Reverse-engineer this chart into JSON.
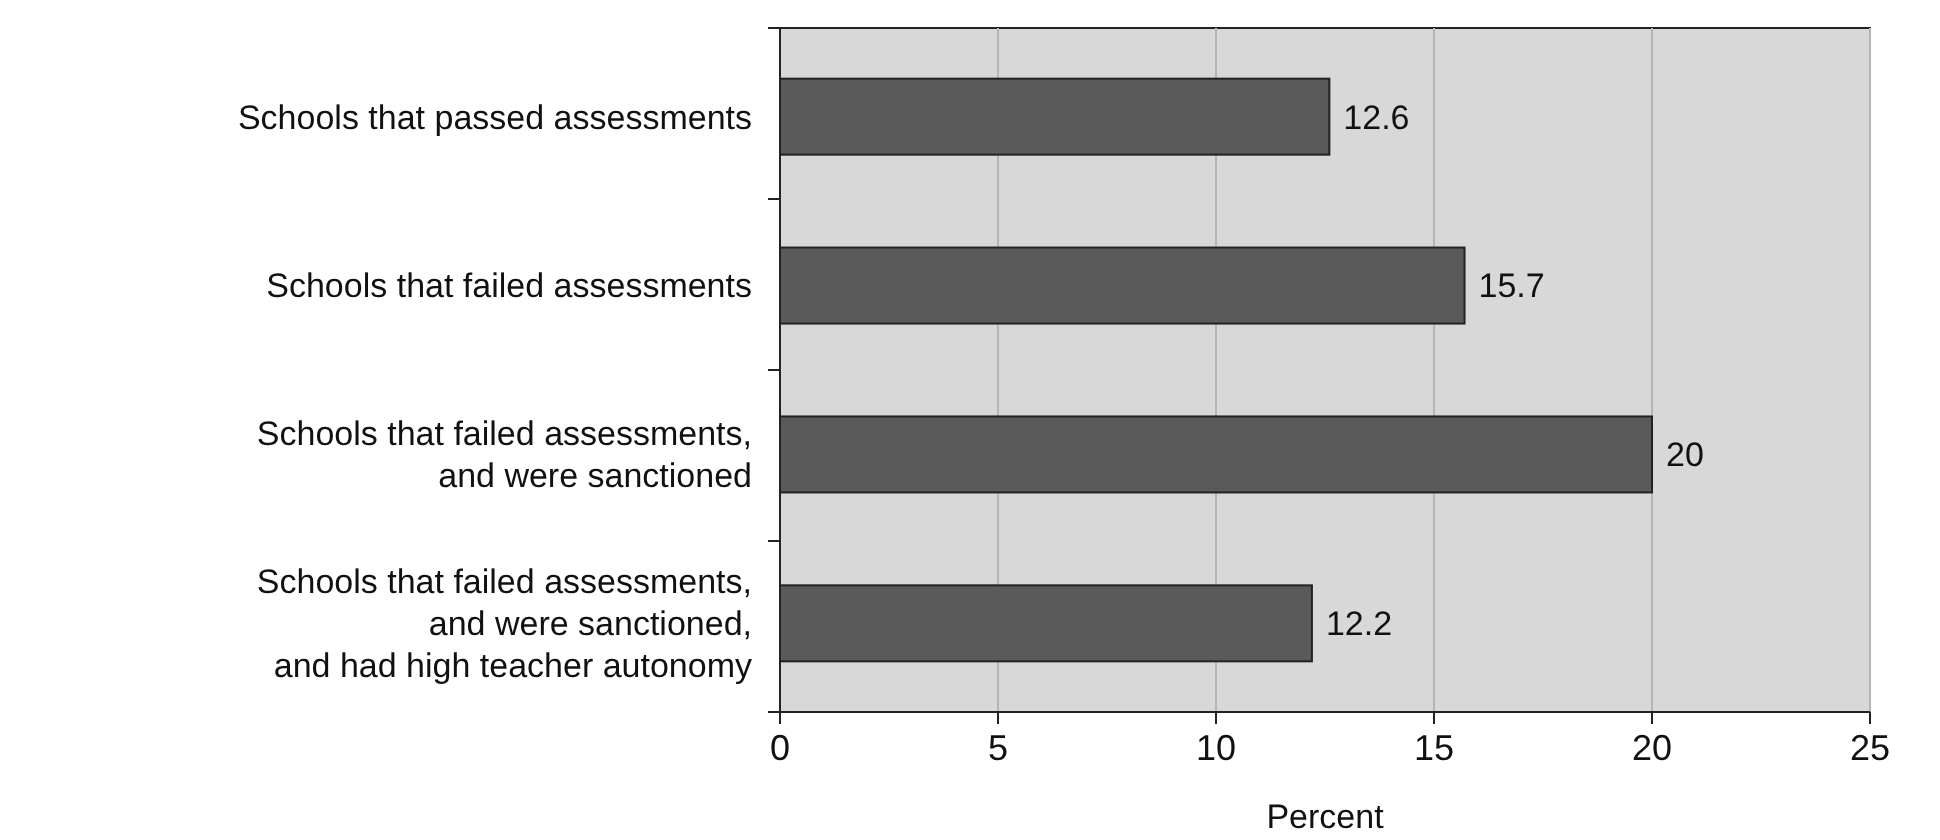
{
  "chart_data": {
    "type": "bar",
    "orientation": "horizontal",
    "xlabel": "Percent",
    "categories": [
      "Schools that passed assessments",
      "Schools that failed assessments",
      "Schools that failed assessments,\nand were sanctioned",
      "Schools that failed assessments,\nand were sanctioned,\nand had high teacher autonomy"
    ],
    "values": [
      12.6,
      15.7,
      20,
      12.2
    ],
    "color": "#5a5a5a",
    "data_labels": true,
    "xlim": [
      0,
      25
    ],
    "xticks": [
      0,
      5,
      10,
      15,
      20,
      25
    ],
    "grid": "x"
  }
}
